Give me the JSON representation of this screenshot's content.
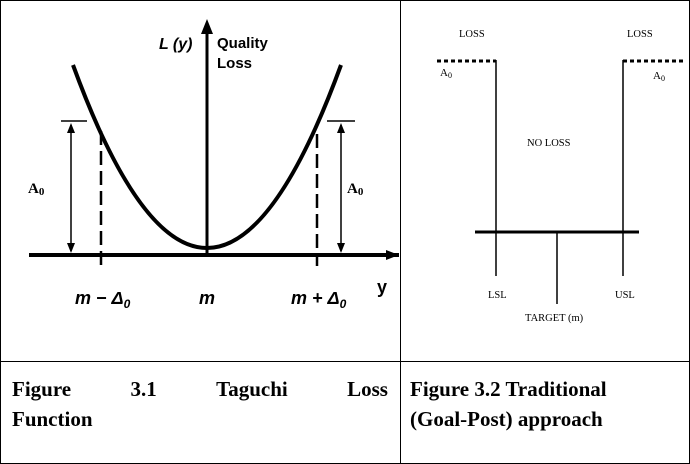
{
  "figure_left": {
    "axis_y_label": "L (y)",
    "quality_loss_line1": "Quality",
    "quality_loss_line2": "Loss",
    "x_axis_label": "y",
    "a0_left": "A",
    "a0_left_sub": "0",
    "a0_right": "A",
    "a0_right_sub": "0",
    "tick_left": "m − Δ",
    "tick_left_sub": "0",
    "tick_center": "m",
    "tick_right": "m + Δ",
    "tick_right_sub": "0"
  },
  "figure_right": {
    "loss_left": "LOSS",
    "loss_right": "LOSS",
    "a0_left": "A",
    "a0_left_sub": "0",
    "a0_right": "A",
    "a0_right_sub": "0",
    "no_loss": "NO LOSS",
    "lsl": "LSL",
    "usl": "USL",
    "target": "TARGET (m)"
  },
  "captions": {
    "left_words_line1": [
      "Figure",
      "3.1",
      "Taguchi",
      "Loss"
    ],
    "left_line2": "Function",
    "right_line1": "Figure 3.2 Traditional",
    "right_line2": "(Goal-Post) approach"
  }
}
